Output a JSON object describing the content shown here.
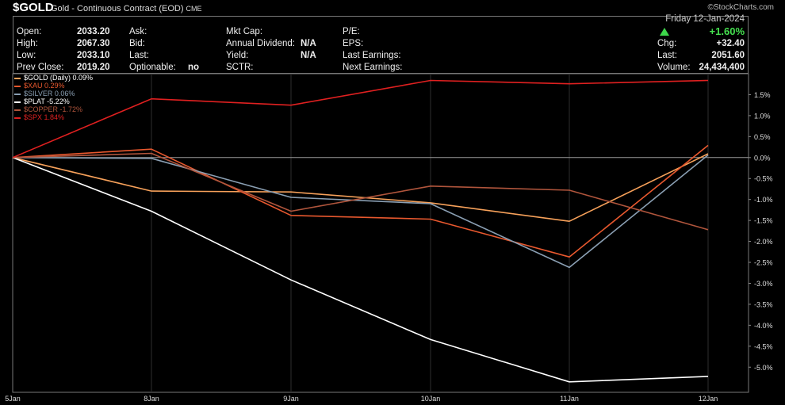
{
  "header": {
    "symbol": "$GOLD",
    "description": "Gold - Continuous Contract (EOD)",
    "exchange": "CME",
    "watermark": "©StockCharts.com"
  },
  "quote": {
    "open_label": "Open:",
    "open": "2033.20",
    "high_label": "High:",
    "high": "2067.30",
    "low_label": "Low:",
    "low": "2033.10",
    "prev_close_label": "Prev Close:",
    "prev_close": "2019.20",
    "ask_label": "Ask:",
    "bid_label": "Bid:",
    "last_label": "Last:",
    "optionable_label": "Optionable:",
    "optionable": "no",
    "mktcap_label": "Mkt Cap:",
    "div_label": "Annual Dividend:",
    "div": "N/A",
    "yield_label": "Yield:",
    "yield": "N/A",
    "sctr_label": "SCTR:",
    "pe_label": "P/E:",
    "eps_label": "EPS:",
    "last_earn_label": "Last Earnings:",
    "next_earn_label": "Next Earnings:",
    "date": "Friday  12-Jan-2024",
    "pct_change": "+1.60%",
    "chg_label": "Chg:",
    "chg": "+32.40",
    "last_price_label": "Last:",
    "last_price": "2051.60",
    "volume_label": "Volume:",
    "volume": "24,434,400"
  },
  "chart_data": {
    "type": "line",
    "x": [
      "5Jan",
      "8Jan",
      "9Jan",
      "10Jan",
      "11Jan",
      "12Jan"
    ],
    "ylim": [
      -5.6,
      2.0
    ],
    "yticks": [
      1.5,
      1.0,
      0.5,
      0.0,
      -0.5,
      -1.0,
      -1.5,
      -2.0,
      -2.5,
      -3.0,
      -3.5,
      -4.0,
      -4.5,
      -5.0
    ],
    "grid": true,
    "legend_position": "top-left",
    "series": [
      {
        "name": "$GOLD (Daily)",
        "legend_label": "$GOLD (Daily) 0.09%",
        "color": "#f7a15a",
        "values": [
          0.0,
          -0.8,
          -0.82,
          -1.08,
          -1.52,
          0.09
        ]
      },
      {
        "name": "$XAU",
        "legend_label": "$XAU 0.29%",
        "color": "#e8582e",
        "values": [
          0.0,
          0.2,
          -1.38,
          -1.47,
          -2.37,
          0.29
        ]
      },
      {
        "name": "$SILVER",
        "legend_label": "$SILVER 0.06%",
        "color": "#8a9fb3",
        "values": [
          0.0,
          -0.02,
          -0.95,
          -1.1,
          -2.62,
          0.06
        ]
      },
      {
        "name": "$PLAT",
        "legend_label": "$PLAT -5.22%",
        "color": "#ffffff",
        "values": [
          0.0,
          -1.28,
          -2.92,
          -4.34,
          -5.35,
          -5.22
        ]
      },
      {
        "name": "$COPPER",
        "legend_label": "$COPPER -1.72%",
        "color": "#b0553c",
        "values": [
          0.0,
          0.1,
          -1.28,
          -0.68,
          -0.78,
          -1.72
        ]
      },
      {
        "name": "$SPX",
        "legend_label": "$SPX 1.84%",
        "color": "#e02020",
        "values": [
          0.0,
          1.4,
          1.25,
          1.84,
          1.76,
          1.84
        ]
      }
    ]
  }
}
